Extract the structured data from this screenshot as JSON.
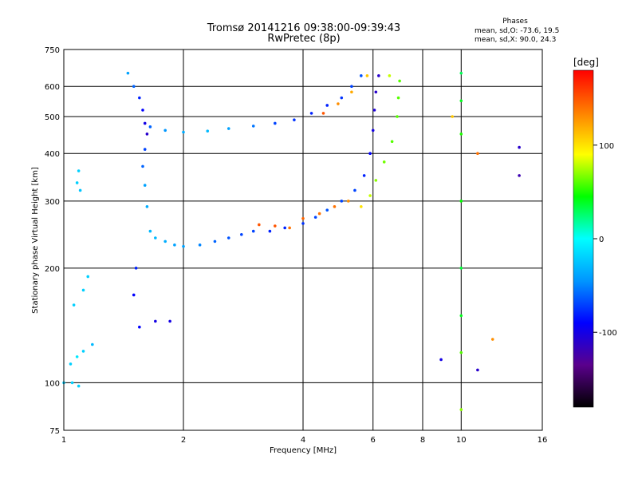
{
  "chart_data": {
    "type": "scatter",
    "title": "Tromsø 20141216 09:38:00-09:39:43",
    "subtitle": "RwPretec (8p)",
    "phases": {
      "header": "Phases",
      "line_o": "mean, sd,O: -73.6, 19.5",
      "line_x": "mean, sd,X:  90.0, 24.3"
    },
    "xlabel": "Frequency [MHz]",
    "ylabel": "Stationary phase Virtual Height [km]",
    "x_scale": "log",
    "y_scale": "log",
    "xlim": [
      1,
      16
    ],
    "ylim": [
      75,
      750
    ],
    "x_ticks": [
      1,
      2,
      4,
      6,
      8,
      10,
      16
    ],
    "x_tick_labels": [
      "1",
      "2",
      "4",
      "6",
      "8",
      "10",
      "16"
    ],
    "y_ticks": [
      75,
      100,
      200,
      300,
      400,
      500,
      600,
      750
    ],
    "y_tick_labels": [
      "75",
      "100",
      "200",
      "300",
      "400",
      "500",
      "600",
      "750"
    ],
    "grid": true,
    "colorbar": {
      "label": "[deg]",
      "range": [
        -180,
        180
      ],
      "ticks": [
        100,
        0,
        -100
      ],
      "tick_labels": [
        "100",
        "0",
        "-100"
      ],
      "colors": [
        "#000000",
        "#5a008c",
        "#0000ff",
        "#0096ff",
        "#00ffff",
        "#00ff00",
        "#ffff00",
        "#ff8000",
        "#ff0000"
      ]
    },
    "series": [
      {
        "points": [
          [
            1.0,
            100,
            -20
          ],
          [
            1.05,
            100,
            -20
          ],
          [
            1.09,
            98,
            -20
          ],
          [
            1.04,
            112,
            -20
          ],
          [
            1.08,
            117,
            -10
          ],
          [
            1.12,
            121,
            -20
          ],
          [
            1.18,
            126,
            -30
          ],
          [
            1.06,
            160,
            -20
          ],
          [
            1.12,
            175,
            -20
          ],
          [
            1.15,
            190,
            -20
          ],
          [
            1.08,
            335,
            -20
          ],
          [
            1.09,
            360,
            -20
          ],
          [
            1.1,
            320,
            -25
          ],
          [
            1.45,
            650,
            -40
          ],
          [
            1.5,
            600,
            -60
          ],
          [
            1.55,
            560,
            -80
          ],
          [
            1.58,
            520,
            -90
          ],
          [
            1.6,
            480,
            -100
          ],
          [
            1.62,
            450,
            -110
          ],
          [
            1.6,
            410,
            -70
          ],
          [
            1.58,
            370,
            -60
          ],
          [
            1.6,
            330,
            -40
          ],
          [
            1.62,
            290,
            -35
          ],
          [
            1.65,
            250,
            -30
          ],
          [
            1.7,
            240,
            -30
          ],
          [
            1.8,
            235,
            -35
          ],
          [
            1.9,
            230,
            -40
          ],
          [
            2.0,
            228,
            -40
          ],
          [
            2.2,
            230,
            -50
          ],
          [
            2.4,
            235,
            -60
          ],
          [
            2.6,
            240,
            -65
          ],
          [
            2.8,
            245,
            -70
          ],
          [
            3.0,
            250,
            -70
          ],
          [
            3.3,
            250,
            -80
          ],
          [
            3.6,
            255,
            -80
          ],
          [
            4.0,
            262,
            -75
          ],
          [
            4.3,
            272,
            -70
          ],
          [
            4.6,
            284,
            -65
          ],
          [
            5.0,
            300,
            -70
          ],
          [
            5.4,
            320,
            -70
          ],
          [
            5.7,
            350,
            -80
          ],
          [
            5.9,
            400,
            -90
          ],
          [
            6.0,
            460,
            -100
          ],
          [
            6.05,
            520,
            -105
          ],
          [
            6.1,
            580,
            -110
          ],
          [
            6.2,
            640,
            -110
          ],
          [
            1.65,
            470,
            -60
          ],
          [
            1.8,
            460,
            -45
          ],
          [
            2.0,
            455,
            -35
          ],
          [
            2.3,
            458,
            -30
          ],
          [
            2.6,
            465,
            -40
          ],
          [
            3.0,
            472,
            -55
          ],
          [
            3.4,
            480,
            -70
          ],
          [
            3.8,
            490,
            -75
          ],
          [
            4.2,
            510,
            -80
          ],
          [
            4.6,
            535,
            -80
          ],
          [
            5.0,
            560,
            -75
          ],
          [
            5.3,
            600,
            -70
          ],
          [
            5.6,
            640,
            -65
          ],
          [
            1.55,
            140,
            -90
          ],
          [
            1.7,
            145,
            -100
          ],
          [
            1.85,
            145,
            -100
          ],
          [
            1.5,
            170,
            -90
          ],
          [
            1.52,
            200,
            -80
          ],
          [
            8.9,
            115,
            -100
          ],
          [
            11.0,
            108,
            -110
          ],
          [
            14.0,
            415,
            -110
          ],
          [
            14.0,
            350,
            -120
          ]
        ]
      },
      {
        "points": [
          [
            3.1,
            260,
            150
          ],
          [
            3.4,
            258,
            150
          ],
          [
            3.7,
            255,
            140
          ],
          [
            4.0,
            270,
            145
          ],
          [
            4.4,
            278,
            140
          ],
          [
            4.8,
            290,
            140
          ],
          [
            5.2,
            300,
            130
          ],
          [
            5.6,
            290,
            100
          ],
          [
            5.9,
            310,
            80
          ],
          [
            6.1,
            340,
            70
          ],
          [
            6.4,
            380,
            65
          ],
          [
            6.7,
            430,
            60
          ],
          [
            6.9,
            500,
            60
          ],
          [
            6.95,
            560,
            60
          ],
          [
            7.0,
            620,
            60
          ],
          [
            4.5,
            510,
            150
          ],
          [
            4.9,
            540,
            130
          ],
          [
            5.3,
            580,
            120
          ],
          [
            5.8,
            640,
            110
          ],
          [
            6.6,
            640,
            80
          ],
          [
            10.0,
            650,
            30
          ],
          [
            10.0,
            550,
            40
          ],
          [
            10.0,
            450,
            50
          ],
          [
            10.0,
            300,
            45
          ],
          [
            10.0,
            200,
            35
          ],
          [
            10.0,
            150,
            40
          ],
          [
            10.0,
            120,
            60
          ],
          [
            10.0,
            85,
            70
          ],
          [
            9.5,
            500,
            110
          ],
          [
            11.0,
            400,
            140
          ],
          [
            12.0,
            130,
            130
          ]
        ]
      }
    ]
  }
}
